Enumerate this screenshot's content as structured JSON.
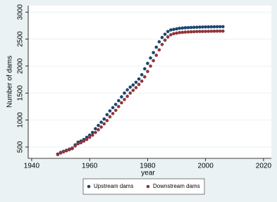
{
  "chart_data": {
    "type": "scatter",
    "x_label": "year",
    "y_label": "Number of dams",
    "x": [
      1949,
      1950,
      1951,
      1952,
      1953,
      1954,
      1955,
      1956,
      1957,
      1958,
      1959,
      1960,
      1961,
      1962,
      1963,
      1964,
      1965,
      1966,
      1967,
      1968,
      1969,
      1970,
      1971,
      1972,
      1973,
      1974,
      1975,
      1976,
      1977,
      1978,
      1979,
      1980,
      1981,
      1982,
      1983,
      1984,
      1985,
      1986,
      1987,
      1988,
      1989,
      1990,
      1991,
      1992,
      1993,
      1994,
      1995,
      1996,
      1997,
      1998,
      1999,
      2000,
      2001,
      2002,
      2003,
      2004,
      2005,
      2006
    ],
    "series": [
      {
        "name": "Upstream dams",
        "color": "#1a476f",
        "values": [
          370,
          400,
          420,
          440,
          460,
          480,
          540,
          590,
          610,
          640,
          680,
          720,
          770,
          840,
          900,
          960,
          1020,
          1100,
          1170,
          1230,
          1290,
          1360,
          1430,
          1500,
          1560,
          1610,
          1650,
          1700,
          1760,
          1840,
          1950,
          2050,
          2150,
          2250,
          2350,
          2450,
          2530,
          2590,
          2640,
          2670,
          2680,
          2690,
          2700,
          2705,
          2710,
          2712,
          2715,
          2718,
          2720,
          2722,
          2724,
          2725,
          2726,
          2727,
          2728,
          2729,
          2730,
          2730
        ]
      },
      {
        "name": "Downstream dams",
        "color": "#90353b",
        "values": [
          360,
          390,
          410,
          430,
          450,
          470,
          520,
          560,
          580,
          610,
          640,
          680,
          720,
          770,
          820,
          870,
          930,
          990,
          1060,
          1120,
          1180,
          1250,
          1320,
          1380,
          1440,
          1500,
          1550,
          1600,
          1660,
          1720,
          1800,
          1900,
          2000,
          2100,
          2200,
          2300,
          2400,
          2480,
          2540,
          2580,
          2600,
          2610,
          2620,
          2625,
          2630,
          2632,
          2635,
          2637,
          2640,
          2641,
          2642,
          2643,
          2644,
          2645,
          2646,
          2647,
          2648,
          2648
        ]
      }
    ],
    "xlim": [
      1938.8,
      2022.7
    ],
    "ylim": [
      290,
      3120
    ],
    "xticks": [
      1940,
      1960,
      1980,
      2000,
      2020
    ],
    "yticks": [
      500,
      1000,
      1500,
      2000,
      2500,
      3000
    ],
    "grid": true
  }
}
